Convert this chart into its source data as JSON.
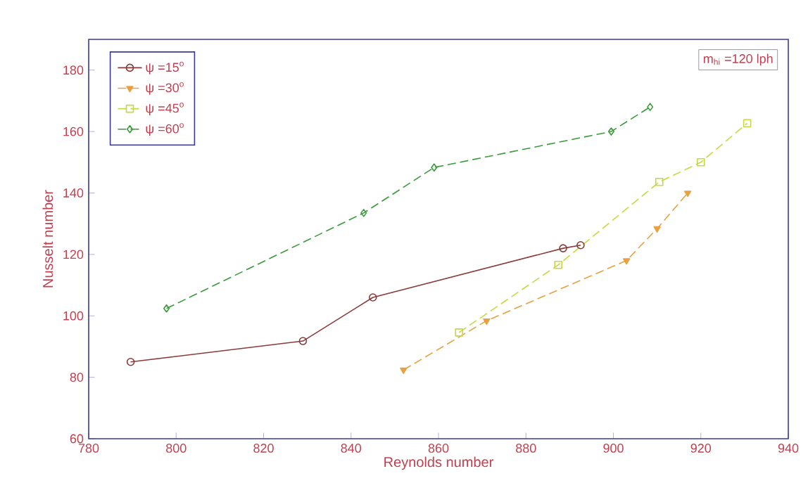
{
  "chart_data": {
    "type": "line",
    "xlabel": "Reynolds number",
    "ylabel": "Nusselt number",
    "annotations": [
      "m$_{hi}$ =120 lph"
    ],
    "xlim": [
      780,
      940
    ],
    "xticks": [
      780,
      800,
      820,
      840,
      860,
      880,
      900,
      920,
      940
    ],
    "ylim": [
      60,
      190
    ],
    "yticks": [
      60,
      80,
      100,
      120,
      140,
      160,
      180
    ],
    "grid": false,
    "legend": "top left",
    "series": [
      {
        "name": "ψ =15$^{o}$",
        "color": "#8b3a3a",
        "marker": "circle",
        "line_style": "solid",
        "x": [
          789.6,
          829,
          845,
          888.5,
          892.5
        ],
        "values": [
          85,
          91.8,
          106,
          122,
          123
        ]
      },
      {
        "name": "ψ =30$^{o}$",
        "color": "#e8a040",
        "marker": "triangle",
        "line_style": "dashed",
        "x": [
          852,
          871,
          903,
          910,
          917
        ],
        "values": [
          82.4,
          98.4,
          118,
          128.4,
          140
        ]
      },
      {
        "name": "ψ =45$^{o}$",
        "color": "#c8d840",
        "marker": "square",
        "line_style": "dashed",
        "x": [
          864.7,
          887.4,
          910.5,
          920,
          930.6
        ],
        "values": [
          94.6,
          116.6,
          143.6,
          150,
          162.7
        ]
      },
      {
        "name": "ψ =60$^{o}$",
        "color": "#3a9a3a",
        "marker": "diamond",
        "line_style": "dashed",
        "x": [
          797.8,
          842.9,
          859,
          899.5,
          908.4
        ],
        "values": [
          102.4,
          133.5,
          148.3,
          160,
          168
        ]
      }
    ]
  }
}
